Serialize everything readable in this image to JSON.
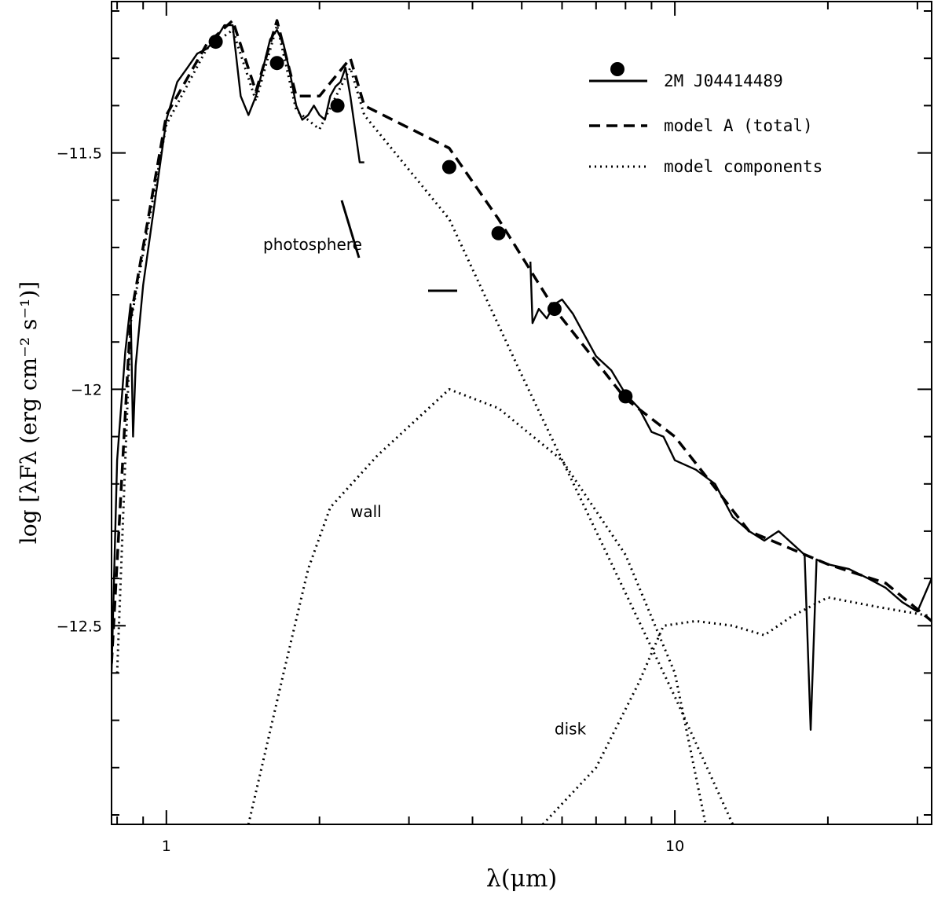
{
  "chart_data": {
    "type": "line",
    "xlabel": "λ(μm)",
    "ylabel": "log [λFλ (erg cm⁻² s⁻¹)]",
    "x_scale": "log",
    "xlim": [
      0.78,
      32
    ],
    "ylim": [
      -12.92,
      -11.18
    ],
    "x_ticks": [
      {
        "value": 1,
        "label": "1"
      },
      {
        "value": 10,
        "label": "10"
      }
    ],
    "y_ticks": [
      {
        "value": -11.5,
        "label": "−11.5"
      },
      {
        "value": -12,
        "label": "−12"
      },
      {
        "value": -12.5,
        "label": "−12.5"
      }
    ],
    "grid": false,
    "legend_position": "top-right",
    "legend": [
      {
        "label": "2M J04414489",
        "style": "solid-with-marker"
      },
      {
        "label": "model A (total)",
        "style": "dashed"
      },
      {
        "label": "model components",
        "style": "dotted"
      }
    ],
    "annotations": [
      {
        "text": "photosphere",
        "x": 1.55,
        "y": -11.705
      },
      {
        "text": "wall",
        "x": 2.3,
        "y": -12.27
      },
      {
        "text": "disk",
        "x": 5.8,
        "y": -12.73
      }
    ],
    "series": [
      {
        "name": "2M J04414489",
        "style": "markers",
        "points": [
          [
            1.25,
            -11.265
          ],
          [
            1.65,
            -11.31
          ],
          [
            2.17,
            -11.4
          ],
          [
            3.6,
            -11.53
          ],
          [
            4.5,
            -11.67
          ],
          [
            5.8,
            -11.83
          ],
          [
            8.0,
            -12.015
          ]
        ]
      },
      {
        "name": "2M J04414489",
        "style": "solid",
        "points": [
          [
            0.78,
            -12.6
          ],
          [
            0.8,
            -12.15
          ],
          [
            0.83,
            -11.92
          ],
          [
            0.85,
            -11.82
          ],
          [
            0.86,
            -12.1
          ],
          [
            0.87,
            -11.95
          ],
          [
            0.9,
            -11.78
          ],
          [
            0.95,
            -11.6
          ],
          [
            1.0,
            -11.43
          ],
          [
            1.05,
            -11.35
          ],
          [
            1.1,
            -11.32
          ],
          [
            1.15,
            -11.29
          ],
          [
            1.2,
            -11.28
          ],
          [
            1.25,
            -11.26
          ],
          [
            1.3,
            -11.23
          ],
          [
            1.35,
            -11.23
          ],
          [
            1.4,
            -11.38
          ],
          [
            1.45,
            -11.42
          ],
          [
            1.5,
            -11.38
          ],
          [
            1.55,
            -11.32
          ],
          [
            1.6,
            -11.26
          ],
          [
            1.65,
            -11.24
          ],
          [
            1.7,
            -11.27
          ],
          [
            1.75,
            -11.33
          ],
          [
            1.8,
            -11.4
          ],
          [
            1.85,
            -11.43
          ],
          [
            1.9,
            -11.42
          ],
          [
            1.95,
            -11.4
          ],
          [
            2.0,
            -11.42
          ],
          [
            2.05,
            -11.43
          ],
          [
            2.1,
            -11.38
          ],
          [
            2.15,
            -11.36
          ],
          [
            2.2,
            -11.35
          ],
          [
            2.25,
            -11.32
          ],
          [
            2.3,
            -11.38
          ],
          [
            2.35,
            -11.45
          ],
          [
            2.4,
            -11.52
          ],
          [
            2.45,
            -11.52
          ]
        ]
      },
      {
        "name": "2M J04414489",
        "style": "solid",
        "points": [
          [
            5.2,
            -11.73
          ],
          [
            5.25,
            -11.86
          ],
          [
            5.4,
            -11.83
          ],
          [
            5.6,
            -11.85
          ],
          [
            5.8,
            -11.82
          ],
          [
            6.0,
            -11.81
          ],
          [
            6.3,
            -11.84
          ],
          [
            6.6,
            -11.88
          ],
          [
            7.0,
            -11.93
          ],
          [
            7.5,
            -11.96
          ],
          [
            8.0,
            -12.01
          ],
          [
            8.5,
            -12.04
          ],
          [
            9.0,
            -12.09
          ],
          [
            9.5,
            -12.1
          ],
          [
            10.0,
            -12.15
          ],
          [
            11.0,
            -12.17
          ],
          [
            12.0,
            -12.2
          ],
          [
            13.0,
            -12.27
          ],
          [
            14.0,
            -12.3
          ],
          [
            15.0,
            -12.32
          ],
          [
            16.0,
            -12.3
          ],
          [
            18.0,
            -12.35
          ],
          [
            18.5,
            -12.72
          ],
          [
            19.0,
            -12.36
          ],
          [
            20.0,
            -12.37
          ],
          [
            22.0,
            -12.38
          ],
          [
            24.0,
            -12.4
          ],
          [
            26.0,
            -12.42
          ],
          [
            28.0,
            -12.45
          ],
          [
            30.0,
            -12.47
          ],
          [
            32.0,
            -12.4
          ]
        ]
      },
      {
        "name": "model A (total)",
        "style": "dashed",
        "points": [
          [
            0.78,
            -12.58
          ],
          [
            0.85,
            -11.85
          ],
          [
            1.0,
            -11.42
          ],
          [
            1.2,
            -11.27
          ],
          [
            1.35,
            -11.22
          ],
          [
            1.5,
            -11.37
          ],
          [
            1.65,
            -11.22
          ],
          [
            1.8,
            -11.38
          ],
          [
            2.0,
            -11.38
          ],
          [
            2.3,
            -11.3
          ],
          [
            2.45,
            -11.4
          ],
          [
            3.6,
            -11.49
          ],
          [
            4.5,
            -11.64
          ],
          [
            5.8,
            -11.83
          ],
          [
            8.0,
            -12.02
          ],
          [
            10.0,
            -12.1
          ],
          [
            14.0,
            -12.3
          ],
          [
            20.0,
            -12.37
          ],
          [
            26.0,
            -12.41
          ],
          [
            32.0,
            -12.49
          ]
        ]
      },
      {
        "name": "photosphere",
        "style": "dotted",
        "points": [
          [
            0.8,
            -12.6
          ],
          [
            0.85,
            -11.86
          ],
          [
            1.0,
            -11.44
          ],
          [
            1.2,
            -11.28
          ],
          [
            1.35,
            -11.24
          ],
          [
            1.5,
            -11.39
          ],
          [
            1.65,
            -11.23
          ],
          [
            1.8,
            -11.41
          ],
          [
            2.0,
            -11.45
          ],
          [
            2.3,
            -11.32
          ],
          [
            2.45,
            -11.42
          ],
          [
            3.6,
            -11.64
          ],
          [
            5.0,
            -11.97
          ],
          [
            7.0,
            -12.3
          ],
          [
            10.0,
            -12.65
          ],
          [
            13.0,
            -12.92
          ]
        ]
      },
      {
        "name": "wall",
        "style": "dotted",
        "points": [
          [
            1.45,
            -12.92
          ],
          [
            1.7,
            -12.6
          ],
          [
            1.9,
            -12.38
          ],
          [
            2.1,
            -12.25
          ],
          [
            2.6,
            -12.14
          ],
          [
            3.6,
            -12.0
          ],
          [
            4.5,
            -12.04
          ],
          [
            6.0,
            -12.15
          ],
          [
            8.0,
            -12.35
          ],
          [
            10.0,
            -12.6
          ],
          [
            11.5,
            -12.92
          ]
        ]
      },
      {
        "name": "disk",
        "style": "dotted",
        "points": [
          [
            5.5,
            -12.92
          ],
          [
            7.0,
            -12.8
          ],
          [
            8.5,
            -12.62
          ],
          [
            9.5,
            -12.5
          ],
          [
            11.0,
            -12.49
          ],
          [
            13.0,
            -12.5
          ],
          [
            15.0,
            -12.52
          ],
          [
            17.0,
            -12.48
          ],
          [
            20.0,
            -12.44
          ],
          [
            25.0,
            -12.46
          ],
          [
            32.0,
            -12.48
          ]
        ]
      }
    ]
  }
}
